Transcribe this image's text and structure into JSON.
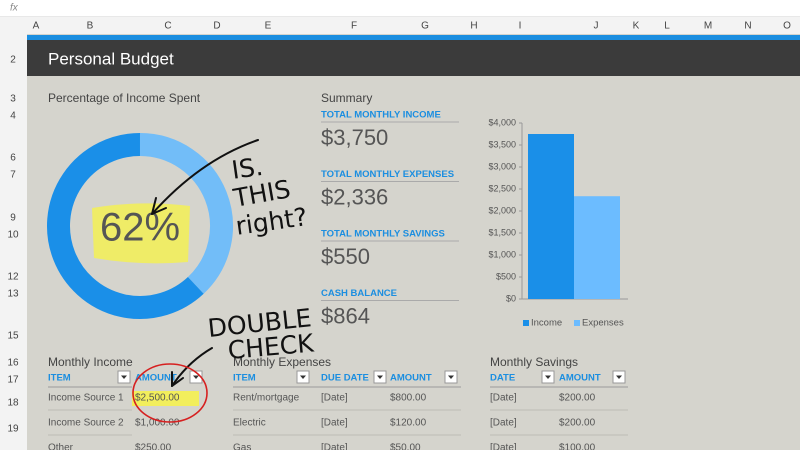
{
  "formula_bar": {
    "fx": "fx"
  },
  "columns": [
    "A",
    "B",
    "C",
    "D",
    "E",
    "F",
    "G",
    "H",
    "I",
    "J",
    "K",
    "L",
    "M",
    "N",
    "O"
  ],
  "rows": [
    "2",
    "3",
    "4",
    "6",
    "7",
    "9",
    "10",
    "12",
    "13",
    "15",
    "16",
    "17",
    "18",
    "19"
  ],
  "title": "Personal Budget",
  "donut": {
    "type": "pie",
    "title": "Percentage of Income Spent",
    "value": 62,
    "value_label": "62%",
    "colors": [
      "#1a8fe8",
      "#72bdf8"
    ]
  },
  "summary": {
    "title": "Summary",
    "items": [
      {
        "label": "TOTAL MONTHLY INCOME",
        "value": "$3,750"
      },
      {
        "label": "TOTAL MONTHLY EXPENSES",
        "value": "$2,336"
      },
      {
        "label": "TOTAL MONTHLY SAVINGS",
        "value": "$550"
      },
      {
        "label": "CASH BALANCE",
        "value": "$864"
      }
    ]
  },
  "bar_chart": {
    "type": "bar",
    "categories": [
      "Income",
      "Expenses"
    ],
    "values": [
      3750,
      2336
    ],
    "colors": [
      "#1a8fe8",
      "#6cbcff"
    ],
    "ylim": [
      0,
      4000
    ],
    "yticks": [
      {
        "value": 0,
        "label": "$0"
      },
      {
        "value": 500,
        "label": "$500"
      },
      {
        "value": 1000,
        "label": "$1,000"
      },
      {
        "value": 1500,
        "label": "$1,500"
      },
      {
        "value": 2000,
        "label": "$2,000"
      },
      {
        "value": 2500,
        "label": "$2,500"
      },
      {
        "value": 3000,
        "label": "$3,000"
      },
      {
        "value": 3500,
        "label": "$3,500"
      },
      {
        "value": 4000,
        "label": "$4,000"
      }
    ],
    "legend": "bottom"
  },
  "tables": [
    {
      "title": "Monthly Income",
      "headers": [
        "ITEM",
        "AMOUNT"
      ],
      "rows": [
        [
          "Income Source 1",
          "$2,500.00"
        ],
        [
          "Income Source 2",
          "$1,000.00"
        ],
        [
          "Other",
          "$250.00"
        ]
      ]
    },
    {
      "title": "Monthly Expenses",
      "headers": [
        "ITEM",
        "DUE DATE",
        "AMOUNT"
      ],
      "rows": [
        [
          "Rent/mortgage",
          "[Date]",
          "$800.00"
        ],
        [
          "Electric",
          "[Date]",
          "$120.00"
        ],
        [
          "Gas",
          "[Date]",
          "$50.00"
        ]
      ]
    },
    {
      "title": "Monthly Savings",
      "headers": [
        "DATE",
        "AMOUNT"
      ],
      "rows": [
        [
          "[Date]",
          "$200.00"
        ],
        [
          "[Date]",
          "$200.00"
        ],
        [
          "[Date]",
          "$100.00"
        ]
      ]
    }
  ],
  "annotations": {
    "question": [
      "IS.",
      "THIS",
      "right?"
    ],
    "check": [
      "DOUBLE",
      "CHECK"
    ]
  }
}
